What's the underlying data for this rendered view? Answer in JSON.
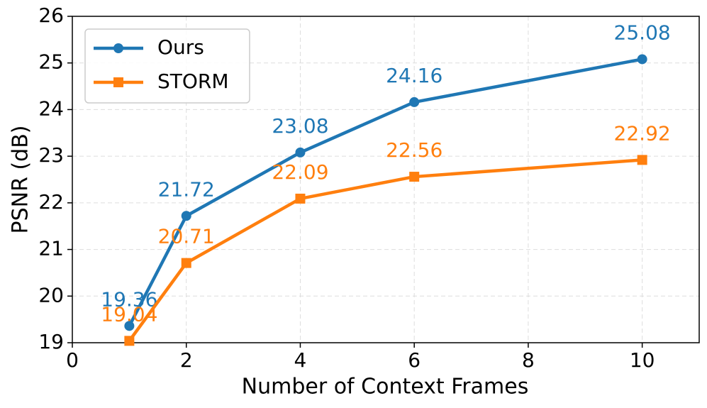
{
  "chart_data": {
    "type": "line",
    "x_label": "Number of Context Frames",
    "y_label": "PSNR (dB)",
    "x": [
      1,
      2,
      4,
      6,
      10
    ],
    "series": [
      {
        "name": "Ours",
        "color": "#1f77b4",
        "marker": "circle",
        "values": [
          19.36,
          21.72,
          23.08,
          24.16,
          25.08
        ]
      },
      {
        "name": "STORM",
        "color": "#ff7f0e",
        "marker": "square",
        "values": [
          19.04,
          20.71,
          22.09,
          22.56,
          22.92
        ]
      }
    ],
    "xlim": [
      0,
      11
    ],
    "xticks": [
      0,
      2,
      4,
      6,
      8,
      10
    ],
    "ylim": [
      19,
      26
    ],
    "yticks": [
      19,
      20,
      21,
      22,
      23,
      24,
      25,
      26
    ],
    "grid": true,
    "legend": "upper left"
  }
}
